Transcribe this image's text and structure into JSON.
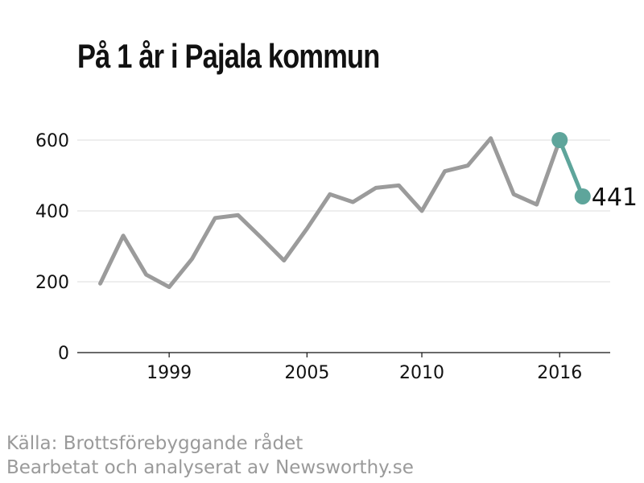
{
  "title": "På 1 år i Pajala kommun",
  "source_lines": [
    "Källa: Brottsförebyggande rådet",
    "Bearbetat och analyserat av Newsworthy.se"
  ],
  "colors": {
    "main_line": "#9b9b9b",
    "highlight": "#5ea59b",
    "grid": "#dddddd",
    "axis": "#111111"
  },
  "chart_data": {
    "type": "line",
    "title": "På 1 år i Pajala kommun",
    "xlabel": "",
    "ylabel": "",
    "x": [
      1996,
      1997,
      1998,
      1999,
      2000,
      2001,
      2002,
      2003,
      2004,
      2005,
      2006,
      2007,
      2008,
      2009,
      2010,
      2011,
      2012,
      2013,
      2014,
      2015,
      2016,
      2017
    ],
    "series": [
      {
        "values": [
          195,
          330,
          220,
          185,
          265,
          380,
          388,
          325,
          260,
          350,
          447,
          425,
          465,
          472,
          400,
          512,
          528,
          605,
          447,
          418,
          600,
          441
        ]
      }
    ],
    "highlight_range": [
      2016,
      2017
    ],
    "end_label": "441",
    "xlim": [
      1995,
      2018.2
    ],
    "ylim": [
      0,
      700
    ],
    "x_ticks": [
      1999,
      2005,
      2010,
      2016
    ],
    "x_tick_labels": [
      "1999",
      "2005",
      "2010",
      "2016"
    ],
    "y_ticks": [
      0,
      200,
      400,
      600
    ],
    "y_tick_labels": [
      "0",
      "200",
      "400",
      "600"
    ],
    "grid": true,
    "legend": "none"
  }
}
